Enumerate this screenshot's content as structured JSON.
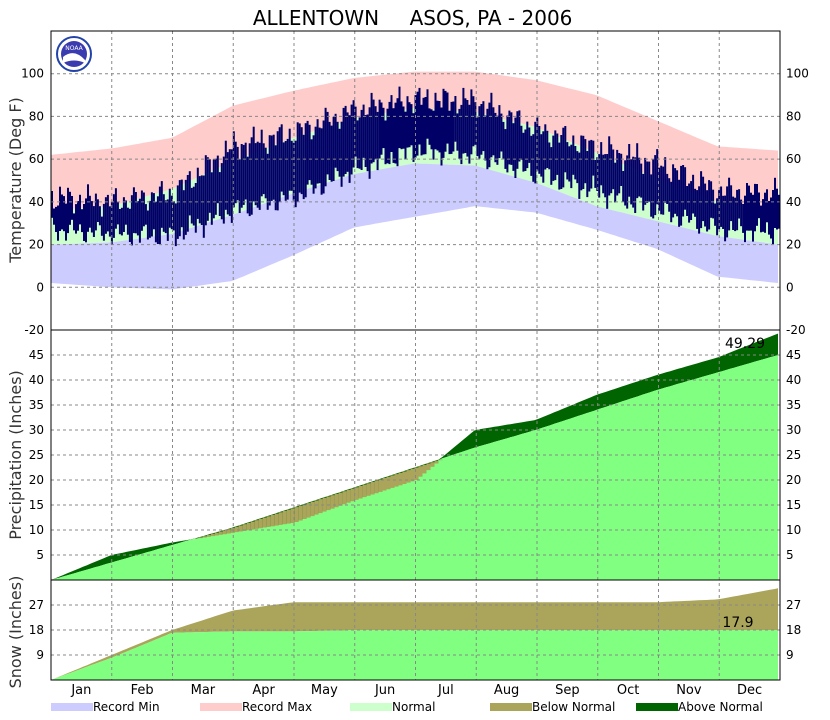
{
  "chart_data": {
    "type": "area",
    "title_left": "ALLENTOWN",
    "title_right": "ASOS, PA - 2006",
    "logo_text": "NOAA",
    "months": [
      "Jan",
      "Feb",
      "Mar",
      "Apr",
      "May",
      "Jun",
      "Jul",
      "Aug",
      "Sep",
      "Oct",
      "Nov",
      "Dec"
    ],
    "legend": [
      {
        "label": "Record Min",
        "color": "#ccccff"
      },
      {
        "label": "Record Max",
        "color": "#ffcccc"
      },
      {
        "label": "Normal",
        "color": "#ccffcc"
      },
      {
        "label": "Below Normal",
        "color": "#aaa55a"
      },
      {
        "label": "Above Normal",
        "color": "#006400"
      }
    ],
    "colors": {
      "actual_temp": "#000066",
      "normal_fill": "#80ff80",
      "above": "#006400",
      "below": "#aaa55a"
    },
    "panels": {
      "temperature": {
        "ylabel": "Temperature (Deg F)",
        "ylim": [
          -20,
          120
        ],
        "ticks": [
          -20,
          0,
          20,
          40,
          60,
          80,
          100
        ],
        "record_min": [
          2,
          0,
          -1,
          3,
          15,
          28,
          33,
          38,
          35,
          27,
          18,
          5,
          2
        ],
        "record_max": [
          62,
          65,
          70,
          85,
          92,
          98,
          101,
          101,
          97,
          90,
          78,
          66,
          64
        ],
        "normal_low": [
          20,
          21,
          25,
          34,
          44,
          53,
          58,
          57,
          49,
          38,
          31,
          24,
          20
        ],
        "normal_high": [
          36,
          38,
          46,
          59,
          70,
          79,
          84,
          82,
          75,
          63,
          51,
          40,
          36
        ],
        "actual_low": [
          27,
          25,
          24,
          36,
          42,
          55,
          64,
          62,
          53,
          45,
          36,
          27,
          26
        ],
        "actual_high": [
          42,
          40,
          44,
          66,
          72,
          83,
          88,
          87,
          74,
          65,
          58,
          45,
          44
        ]
      },
      "precipitation": {
        "ylabel": "Precipitation (Inches)",
        "ylim": [
          0,
          50
        ],
        "ticks": [
          5,
          10,
          15,
          20,
          25,
          30,
          35,
          40,
          45
        ],
        "normal": [
          0,
          3.5,
          7,
          10.5,
          14.5,
          18.5,
          22.5,
          26.5,
          30,
          34,
          38,
          41.5,
          45
        ],
        "actual": [
          0,
          5,
          7.5,
          9.5,
          11.5,
          16,
          20,
          30,
          32,
          37,
          41,
          44.5,
          49.29
        ],
        "total_label": "49.29"
      },
      "snow": {
        "ylabel": "Snow (Inches)",
        "ylim": [
          0,
          36
        ],
        "ticks": [
          9,
          18,
          27
        ],
        "normal": [
          0,
          9,
          18,
          25,
          28,
          28,
          28,
          28,
          28,
          28,
          28,
          29,
          33
        ],
        "actual": [
          0,
          8,
          17,
          17.5,
          17.5,
          17.9,
          17.9,
          17.9,
          17.9,
          17.9,
          17.9,
          17.9,
          17.9
        ],
        "total_label": "17.9"
      }
    }
  }
}
